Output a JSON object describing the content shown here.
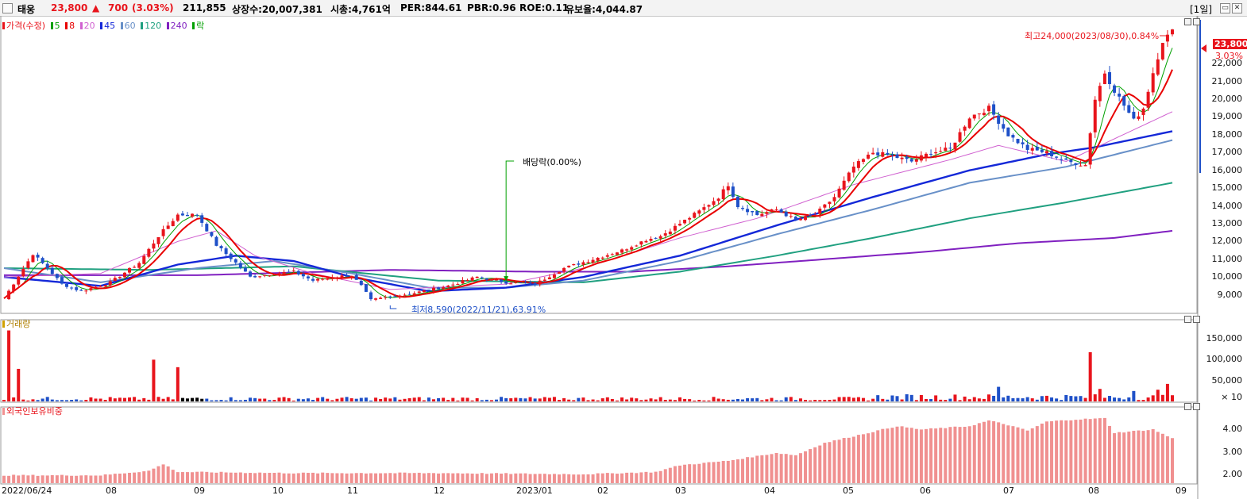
{
  "header": {
    "name": "태웅",
    "price": "23,800",
    "change_arrow": "▲",
    "change": "700",
    "change_pct": "(3.03%)",
    "volume": "211,855",
    "listed": "상장수:20,007,381",
    "market_cap": "시총:4,761억",
    "per": "PER:844.61",
    "pbr": "PBR:0.96",
    "roe": "ROE:0.11",
    "float": "유보율:4,044.87",
    "period": "[1일]",
    "min_btn": "▭",
    "close_btn": "✕"
  },
  "colors": {
    "up": "#e8141c",
    "down": "#1e50c8",
    "ma5": "#00a000",
    "ma8": "#e80000",
    "ma20": "#d060d0",
    "ma45": "#1428d8",
    "ma60": "#6890c8",
    "ma120": "#20a080",
    "ma240": "#8020c0",
    "annotation": "#00a000",
    "foreign": "#f09090"
  },
  "legend": {
    "price": "가격(수정)",
    "ma5": "5",
    "ma8": "8",
    "ma20": "20",
    "ma45": "45",
    "ma60": "60",
    "ma120": "120",
    "ma240": "240",
    "drop": "락"
  },
  "panels": {
    "volume_label": "거래량",
    "foreign_label": "외국인보유비중"
  },
  "annotations": {
    "high": "최고24,000(2023/08/30),0.84%",
    "low": "최저8,590(2022/11/21),63.91%",
    "dividend": "배당락(0.00%)",
    "last_price": "23,800",
    "last_pct": "3.03%"
  },
  "chart_data": {
    "type": "candlestick",
    "start_date": "2022/06/24",
    "price_axis": {
      "ticks": [
        9000,
        10000,
        11000,
        12000,
        13000,
        14000,
        15000,
        16000,
        17000,
        18000,
        19000,
        20000,
        21000,
        22000
      ],
      "tick_labels": [
        "9,000",
        "10,000",
        "11,000",
        "12,000",
        "13,000",
        "14,000",
        "15,000",
        "16,000",
        "17,000",
        "18,000",
        "19,000",
        "20,000",
        "21,000",
        "22,000"
      ],
      "range": [
        8000,
        24600
      ]
    },
    "volume_axis": {
      "ticks": [
        50000,
        100000,
        150000
      ],
      "tick_labels": [
        "50,000",
        "100,000",
        "150,000"
      ],
      "unit": "× 10",
      "range": [
        0,
        190000
      ]
    },
    "foreign_axis": {
      "ticks": [
        2.0,
        3.0,
        4.0
      ],
      "tick_labels": [
        "2.00",
        "3.00",
        "4.00"
      ],
      "range": [
        1.6,
        4.9
      ]
    },
    "date_labels": [
      "2022/06/24",
      "08",
      "09",
      "10",
      "11",
      "12",
      "2023/01",
      "02",
      "03",
      "04",
      "05",
      "06",
      "07",
      "08",
      "09"
    ],
    "price_path": [
      [
        0,
        8800
      ],
      [
        6,
        11300
      ],
      [
        9,
        10500
      ],
      [
        12,
        9600
      ],
      [
        16,
        9200
      ],
      [
        22,
        9700
      ],
      [
        28,
        10800
      ],
      [
        32,
        12300
      ],
      [
        36,
        13500
      ],
      [
        40,
        13500
      ],
      [
        44,
        11800
      ],
      [
        48,
        10800
      ],
      [
        51,
        10000
      ],
      [
        56,
        10200
      ],
      [
        60,
        10300
      ],
      [
        64,
        9800
      ],
      [
        68,
        10000
      ],
      [
        72,
        10100
      ],
      [
        74,
        9500
      ],
      [
        76,
        8700
      ],
      [
        80,
        8900
      ],
      [
        85,
        9100
      ],
      [
        92,
        9500
      ],
      [
        98,
        10000
      ],
      [
        104,
        9700
      ],
      [
        110,
        9600
      ],
      [
        116,
        10500
      ],
      [
        122,
        11000
      ],
      [
        128,
        11500
      ],
      [
        133,
        12100
      ],
      [
        136,
        12300
      ],
      [
        140,
        13000
      ],
      [
        144,
        13700
      ],
      [
        148,
        14500
      ],
      [
        150,
        15200
      ],
      [
        152,
        14000
      ],
      [
        156,
        13500
      ],
      [
        160,
        13800
      ],
      [
        164,
        13200
      ],
      [
        168,
        13500
      ],
      [
        172,
        14500
      ],
      [
        176,
        16200
      ],
      [
        180,
        17000
      ],
      [
        184,
        16800
      ],
      [
        188,
        16500
      ],
      [
        192,
        17000
      ],
      [
        196,
        17200
      ],
      [
        200,
        19000
      ],
      [
        204,
        19500
      ],
      [
        208,
        18000
      ],
      [
        212,
        17200
      ],
      [
        216,
        17000
      ],
      [
        220,
        16500
      ],
      [
        224,
        16300
      ],
      [
        226,
        20000
      ],
      [
        228,
        21500
      ],
      [
        230,
        20500
      ],
      [
        234,
        18800
      ],
      [
        236,
        19500
      ],
      [
        238,
        21500
      ],
      [
        240,
        23300
      ],
      [
        242,
        23800
      ]
    ],
    "ma_paths": {
      "ma20": [
        [
          0,
          10000
        ],
        [
          20,
          10200
        ],
        [
          36,
          12000
        ],
        [
          44,
          12600
        ],
        [
          52,
          11200
        ],
        [
          64,
          10200
        ],
        [
          80,
          9300
        ],
        [
          104,
          9600
        ],
        [
          120,
          10500
        ],
        [
          140,
          12200
        ],
        [
          156,
          13300
        ],
        [
          176,
          15200
        ],
        [
          196,
          16600
        ],
        [
          206,
          17400
        ],
        [
          220,
          16500
        ],
        [
          242,
          19300
        ]
      ],
      "ma45": [
        [
          0,
          10000
        ],
        [
          20,
          9500
        ],
        [
          36,
          10700
        ],
        [
          48,
          11200
        ],
        [
          60,
          10900
        ],
        [
          72,
          10000
        ],
        [
          88,
          9200
        ],
        [
          104,
          9400
        ],
        [
          120,
          10000
        ],
        [
          140,
          11200
        ],
        [
          160,
          12900
        ],
        [
          180,
          14500
        ],
        [
          200,
          16000
        ],
        [
          216,
          16900
        ],
        [
          226,
          17300
        ],
        [
          242,
          18200
        ]
      ],
      "ma60": [
        [
          0,
          10500
        ],
        [
          20,
          9700
        ],
        [
          40,
          10500
        ],
        [
          56,
          10900
        ],
        [
          72,
          10200
        ],
        [
          88,
          9400
        ],
        [
          104,
          9400
        ],
        [
          120,
          9800
        ],
        [
          140,
          10900
        ],
        [
          160,
          12400
        ],
        [
          180,
          13800
        ],
        [
          200,
          15300
        ],
        [
          220,
          16200
        ],
        [
          242,
          17700
        ]
      ],
      "ma120": [
        [
          0,
          10500
        ],
        [
          30,
          10400
        ],
        [
          60,
          10600
        ],
        [
          90,
          9800
        ],
        [
          120,
          9700
        ],
        [
          140,
          10300
        ],
        [
          160,
          11200
        ],
        [
          180,
          12200
        ],
        [
          200,
          13300
        ],
        [
          220,
          14200
        ],
        [
          242,
          15300
        ]
      ],
      "ma240": [
        [
          0,
          10100
        ],
        [
          40,
          10100
        ],
        [
          80,
          10400
        ],
        [
          110,
          10300
        ],
        [
          130,
          10300
        ],
        [
          150,
          10600
        ],
        [
          170,
          11000
        ],
        [
          190,
          11400
        ],
        [
          210,
          11900
        ],
        [
          230,
          12200
        ],
        [
          242,
          12600
        ]
      ]
    },
    "volume_spikes": [
      [
        1,
        170000
      ],
      [
        3,
        78000
      ],
      [
        31,
        100000
      ],
      [
        36,
        82000
      ],
      [
        225,
        118000
      ],
      [
        227,
        30000
      ],
      [
        234,
        25000
      ],
      [
        239,
        28000
      ],
      [
        241,
        42000
      ],
      [
        206,
        35000
      ]
    ],
    "foreign_path": [
      [
        0,
        1.95
      ],
      [
        20,
        1.95
      ],
      [
        30,
        2.15
      ],
      [
        33,
        2.45
      ],
      [
        36,
        2.1
      ],
      [
        60,
        2.05
      ],
      [
        90,
        2.05
      ],
      [
        120,
        2.0
      ],
      [
        135,
        2.1
      ],
      [
        140,
        2.4
      ],
      [
        150,
        2.6
      ],
      [
        160,
        2.95
      ],
      [
        164,
        2.85
      ],
      [
        170,
        3.4
      ],
      [
        180,
        3.9
      ],
      [
        185,
        4.15
      ],
      [
        190,
        4.0
      ],
      [
        200,
        4.15
      ],
      [
        204,
        4.4
      ],
      [
        208,
        4.2
      ],
      [
        212,
        3.95
      ],
      [
        216,
        4.35
      ],
      [
        222,
        4.45
      ],
      [
        228,
        4.5
      ],
      [
        230,
        3.85
      ],
      [
        238,
        4.0
      ],
      [
        242,
        3.6
      ]
    ]
  }
}
